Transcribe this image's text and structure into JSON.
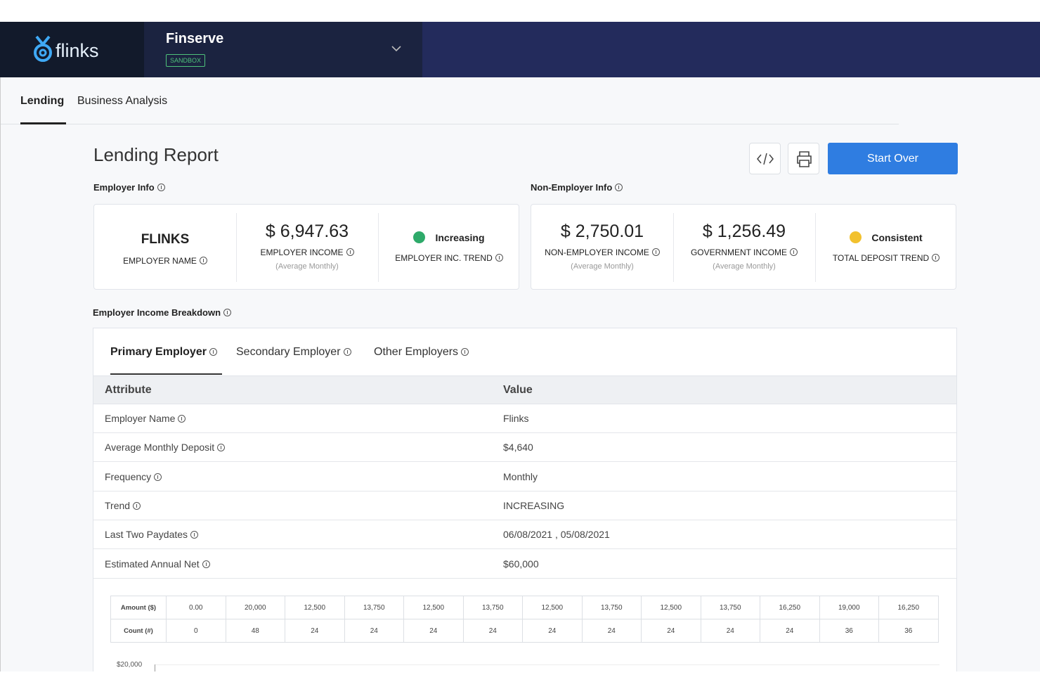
{
  "brand": "flinks",
  "org": {
    "name": "Finserve",
    "badge": "SANDBOX"
  },
  "tabs": [
    "Lending",
    "Business Analysis"
  ],
  "report": {
    "title": "Lending Report",
    "start_over": "Start Over"
  },
  "employer_info": {
    "heading": "Employer Info",
    "cards": [
      {
        "value": "FLINKS",
        "label": "EMPLOYER NAME"
      },
      {
        "value": "$ 6,947.63",
        "label": "EMPLOYER INCOME",
        "note": "(Average Monthly)"
      },
      {
        "value": "Increasing",
        "label": "EMPLOYER INC. TREND"
      }
    ]
  },
  "non_employer_info": {
    "heading": "Non-Employer Info",
    "cards": [
      {
        "value": "$ 2,750.01",
        "label": "NON-EMPLOYER INCOME",
        "note": "(Average Monthly)"
      },
      {
        "value": "$ 1,256.49",
        "label": "GOVERNMENT INCOME",
        "note": "(Average Monthly)"
      },
      {
        "value": "Consistent",
        "label": "TOTAL DEPOSIT TREND"
      }
    ]
  },
  "breakdown": {
    "heading": "Employer Income Breakdown",
    "tabs": [
      "Primary Employer",
      "Secondary Employer",
      "Other Employers"
    ],
    "columns": [
      "Attribute",
      "Value"
    ],
    "rows": [
      [
        "Employer Name",
        "Flinks"
      ],
      [
        "Average Monthly Deposit",
        "$4,640"
      ],
      [
        "Frequency",
        "Monthly"
      ],
      [
        "Trend",
        "INCREASING"
      ],
      [
        "Last Two Paydates",
        "06/08/2021 , 05/08/2021"
      ],
      [
        "Estimated Annual Net",
        "$60,000"
      ]
    ]
  },
  "histogram_table": {
    "rows": [
      {
        "label": "Amount ($)",
        "cells": [
          "0.00",
          "20,000",
          "12,500",
          "13,750",
          "12,500",
          "13,750",
          "12,500",
          "13,750",
          "12,500",
          "13,750",
          "16,250",
          "19,000",
          "16,250"
        ]
      },
      {
        "label": "Count (#)",
        "cells": [
          0,
          48,
          24,
          24,
          24,
          24,
          24,
          24,
          24,
          24,
          24,
          36,
          36
        ]
      }
    ]
  },
  "chart_axis": {
    "ytick": "$20,000"
  }
}
